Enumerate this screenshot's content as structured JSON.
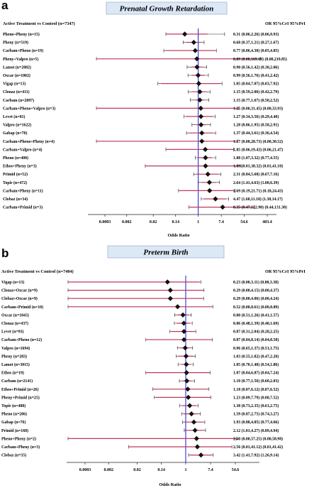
{
  "colors": {
    "reference_line": "#2d2dd6",
    "marker": "#111111",
    "ci_line": "#222222",
    "pri_tick": "#c0395a",
    "title_bg": "#dce8f6"
  },
  "chart_data": [
    {
      "type": "forest",
      "panel": "a",
      "title": "Prenatal Growth Retardation",
      "left_header": "Active Treatment vs Control (n=7347)",
      "right_header": "OR 95%CrI 95%PrI",
      "xlabel": "Odds Ratio",
      "x_scale": "log",
      "x_ticks": [
        "0.0003",
        "0.002",
        "0.02",
        "0.14",
        "1",
        "7.4",
        "54.6",
        "403.4"
      ],
      "reference_value": 1,
      "rows": [
        {
          "label": "Pheno+Pheny (n=15)",
          "or": 0.31,
          "crl": [
            0.06,
            2.26
          ],
          "pri": [
            0.06,
            9.93
          ],
          "text": "0.31 (0.06,2.26) (0.06,9.93)"
        },
        {
          "label": "Pheny (n=519)",
          "or": 0.68,
          "crl": [
            0.37,
            1.21
          ],
          "pri": [
            0.27,
            1.67
          ],
          "text": "0.68 (0.37,1.21) (0.27,1.67)"
        },
        {
          "label": "Carbam+Pheno (n=19)",
          "or": 0.77,
          "crl": [
            0.06,
            4.38
          ],
          "pri": [
            0.05,
            4.85
          ],
          "text": "0.77 (0.06,4.38) (0.05,4.85)"
        },
        {
          "label": "Pheny+Valpro (n=5)",
          "or": 0.89,
          "crl": [
            0.0,
            169.69
          ],
          "pri": [
            0.0,
            219.85
          ],
          "text": "0.89 (0.00,169.69) (0.00,219.85)"
        },
        {
          "label": "Lamot (n=2882)",
          "or": 0.9,
          "crl": [
            0.56,
            1.42
          ],
          "pri": [
            0.38,
            2.06
          ],
          "text": "0.90 (0.56,1.42) (0.38,2.06)"
        },
        {
          "label": "Oxcar (n=1002)",
          "or": 0.99,
          "crl": [
            0.56,
            1.76
          ],
          "pri": [
            0.41,
            2.42
          ],
          "text": "0.99 (0.56,1.76) (0.41,2.42)"
        },
        {
          "label": "Vigap (n=13)",
          "or": 1.05,
          "crl": [
            0.04,
            7.07
          ],
          "pri": [
            0.03,
            7.92
          ],
          "text": "1.05 (0.04,7.07) (0.03,7.92)"
        },
        {
          "label": "Clonaz (n=411)",
          "or": 1.15,
          "crl": [
            0.59,
            2.06
          ],
          "pri": [
            0.42,
            2.79
          ],
          "text": "1.15 (0.59,2.06) (0.42,2.79)"
        },
        {
          "label": "Carbam (n=2897)",
          "or": 1.15,
          "crl": [
            0.77,
            1.67
          ],
          "pri": [
            0.5,
            2.52
          ],
          "text": "1.15 (0.77,1.67) (0.50,2.52)"
        },
        {
          "label": "Carbam+Pheno+Valpro (n=3)",
          "or": 1.25,
          "crl": [
            0.0,
            31.45
          ],
          "pri": [
            0.0,
            33.93
          ],
          "text": "1.25 (0.00,31.45) (0.00,33.93)"
        },
        {
          "label": "Levet (n=81)",
          "or": 1.27,
          "crl": [
            0.34,
            3.56
          ],
          "pri": [
            0.29,
            4.4
          ],
          "text": "1.27 (0.34,3.56) (0.29,4.40)"
        },
        {
          "label": "Valpro (n=1622)",
          "or": 1.28,
          "crl": [
            0.86,
            1.95
          ],
          "pri": [
            0.58,
            2.91
          ],
          "text": "1.28 (0.86,1.95) (0.58,2.91)"
        },
        {
          "label": "Gabap (n=70)",
          "or": 1.37,
          "crl": [
            0.44,
            3.61
          ],
          "pri": [
            0.36,
            4.54
          ],
          "text": "1.37 (0.44,3.61) (0.36,4.54)"
        },
        {
          "label": "Carbam+Pheno+Pheny (n=4)",
          "or": 1.37,
          "crl": [
            0.0,
            28.73
          ],
          "pri": [
            0.0,
            30.52
          ],
          "text": "1.37 (0.00,28.73) (0.00,30.52)"
        },
        {
          "label": "Carbam+Valpro (n=4)",
          "or": 1.85,
          "crl": [
            0.06,
            19.43
          ],
          "pri": [
            0.06,
            21.47
          ],
          "text": "1.85 (0.06,19.43) (0.06,21.47)"
        },
        {
          "label": "Pheno (n=400)",
          "or": 1.88,
          "crl": [
            1.07,
            3.32
          ],
          "pri": [
            0.77,
            4.55
          ],
          "text": "1.88 (1.07,3.32) (0.77,4.55)"
        },
        {
          "label": "Ethos+Pheny (n=3)",
          "or": 1.89,
          "crl": [
            0.01,
            38.32
          ],
          "pri": [
            0.01,
            41.1
          ],
          "text": "1.89 (0.01,38.32) (0.01,41.10)"
        },
        {
          "label": "Primid (n=52)",
          "or": 2.31,
          "crl": [
            0.84,
            5.68
          ],
          "pri": [
            0.67,
            7.16
          ],
          "text": "2.31 (0.84,5.68) (0.67,7.16)"
        },
        {
          "label": "Topir (n=472)",
          "or": 2.64,
          "crl": [
            1.41,
            4.63
          ],
          "pri": [
            1.0,
            6.39
          ],
          "text": "2.64 (1.41,4.63) (1.00,6.39)"
        },
        {
          "label": "Carbam+Pheny (n=11)",
          "or": 2.69,
          "crl": [
            0.19,
            21.71
          ],
          "pri": [
            0.18,
            24.43
          ],
          "text": "2.69 (0.19,21.71) (0.18,24.43)"
        },
        {
          "label": "Clobaz (n=34)",
          "or": 4.47,
          "crl": [
            1.6,
            11.18
          ],
          "pri": [
            1.3,
            14.17
          ],
          "text": "4.47 (1.60,11.18) (1.30,14.17)"
        },
        {
          "label": "Carbam+Primid (n=3)",
          "or": 8.35,
          "crl": [
            0.47,
            122.9
          ],
          "pri": [
            0.44,
            131.3
          ],
          "text": "8.35 (0.47,122.90) (0.44,131.30)"
        }
      ]
    },
    {
      "type": "forest",
      "panel": "b",
      "title": "Preterm Birth",
      "left_header": "Active Treatment vs Control (n=7404)",
      "right_header": "OR 95%CrI 95%PrI",
      "xlabel": "Odds Ratio",
      "x_scale": "log",
      "x_ticks": [
        "0.0003",
        "0.002",
        "0.02",
        "0.14",
        "1",
        "7.4",
        "54.6"
      ],
      "reference_value": 1,
      "rows": [
        {
          "label": "Vigap (n=13)",
          "or": 0.23,
          "crl": [
            0.0,
            3.11
          ],
          "pri": [
            0.0,
            3.38
          ],
          "text": "0.23 (0.00,3.11) (0.00,3.38)"
        },
        {
          "label": "Clonaz+Oxcar (n=9)",
          "or": 0.29,
          "crl": [
            0.0,
            4.15
          ],
          "pri": [
            0.0,
            4.37
          ],
          "text": "0.29 (0.00,4.15) (0.00,4.37)"
        },
        {
          "label": "Clobaz+Oxcar (n=9)",
          "or": 0.29,
          "crl": [
            0.0,
            4.06
          ],
          "pri": [
            0.0,
            4.24
          ],
          "text": "0.29 (0.00,4.06) (0.00,4.24)"
        },
        {
          "label": "Carbam+Primid (n=10)",
          "or": 0.52,
          "crl": [
            0.0,
            8.61
          ],
          "pri": [
            0.0,
            8.89
          ],
          "text": "0.52 (0.00,8.61) (0.00,8.89)"
        },
        {
          "label": "Oxcar (n=1045)",
          "or": 0.8,
          "crl": [
            0.51,
            1.26
          ],
          "pri": [
            0.41,
            1.57
          ],
          "text": "0.80 (0.51,1.26) (0.41,1.57)"
        },
        {
          "label": "Clonaz (n=437)",
          "or": 0.86,
          "crl": [
            0.48,
            1.39
          ],
          "pri": [
            0.4,
            1.69
          ],
          "text": "0.86 (0.48,1.39) (0.40,1.69)"
        },
        {
          "label": "Levet (n=93)",
          "or": 0.87,
          "crl": [
            0.31,
            2.04
          ],
          "pri": [
            0.28,
            2.25
          ],
          "text": "0.87 (0.31,2.04) (0.28,2.25)"
        },
        {
          "label": "Carbam+Pheno (n=12)",
          "or": 0.87,
          "crl": [
            0.04,
            8.14
          ],
          "pri": [
            0.04,
            8.58
          ],
          "text": "0.87 (0.04,8.14) (0.04,8.58)"
        },
        {
          "label": "Valpro (n=1694)",
          "or": 0.96,
          "crl": [
            0.65,
            1.37
          ],
          "pri": [
            0.51,
            1.75
          ],
          "text": "0.96 (0.65,1.37) (0.51,1.75)"
        },
        {
          "label": "Pheny (n=283)",
          "or": 1.03,
          "crl": [
            0.55,
            1.82
          ],
          "pri": [
            0.47,
            2.2
          ],
          "text": "1.03 (0.55,1.82) (0.47,2.20)"
        },
        {
          "label": "Lamot (n=3015)",
          "or": 1.05,
          "crl": [
            0.7,
            1.48
          ],
          "pri": [
            0.54,
            1.86
          ],
          "text": "1.05 (0.70,1.48) (0.54,1.86)"
        },
        {
          "label": "Ethos (n=19)",
          "or": 1.07,
          "crl": [
            0.04,
            6.87
          ],
          "pri": [
            0.04,
            7.24
          ],
          "text": "1.07 (0.04,6.87) (0.04,7.24)"
        },
        {
          "label": "Carbam (n=2141)",
          "or": 1.1,
          "crl": [
            0.77,
            1.56
          ],
          "pri": [
            0.6,
            2.03
          ],
          "text": "1.10 (0.77,1.56) (0.60,2.03)"
        },
        {
          "label": "Ethos+Primid (n=26)",
          "or": 1.18,
          "crl": [
            0.07,
            6.12
          ],
          "pri": [
            0.07,
            6.52
          ],
          "text": "1.18 (0.07,6.12) (0.07,6.52)"
        },
        {
          "label": "Pheny+Primid (n=25)",
          "or": 1.23,
          "crl": [
            0.09,
            7.79
          ],
          "pri": [
            0.08,
            7.52
          ],
          "text": "1.23 (0.09,7.79) (0.08,7.52)"
        },
        {
          "label": "Topir (n=408)",
          "or": 1.38,
          "crl": [
            0.73,
            2.35
          ],
          "pri": [
            0.61,
            2.75
          ],
          "text": "1.38 (0.73,2.35) (0.61,2.75)"
        },
        {
          "label": "Pheno (n=206)",
          "or": 1.59,
          "crl": [
            0.87,
            2.75
          ],
          "pri": [
            0.74,
            3.27
          ],
          "text": "1.59 (0.87,2.75) (0.74,3.27)"
        },
        {
          "label": "Gabap (n=76)",
          "or": 1.93,
          "crl": [
            0.88,
            4.05
          ],
          "pri": [
            0.77,
            4.66
          ],
          "text": "1.93 (0.88,4.05) (0.77,4.66)"
        },
        {
          "label": "Primid (n=168)",
          "or": 2.12,
          "crl": [
            1.01,
            4.27
          ],
          "pri": [
            0.89,
            4.94
          ],
          "text": "2.12 (1.01,4.27) (0.89,4.94)"
        },
        {
          "label": "Pheno+Pheny (n=2)",
          "or": 2.4,
          "crl": [
            0.0,
            57.25
          ],
          "pri": [
            0.0,
            58.98
          ],
          "text": "2.40 (0.00,57.25) (0.00,58.98)"
        },
        {
          "label": "Carbam+Pheny (n=3)",
          "or": 2.56,
          "crl": [
            0.01,
            41.12
          ],
          "pri": [
            0.01,
            41.42
          ],
          "text": "2.56 (0.01,41.12) (0.01,41.42)"
        },
        {
          "label": "Clobaz (n=35)",
          "or": 3.42,
          "crl": [
            1.41,
            7.92
          ],
          "pri": [
            1.26,
            9.14
          ],
          "text": "3.42 (1.41,7.92) (1.26,9.14)"
        }
      ]
    }
  ]
}
